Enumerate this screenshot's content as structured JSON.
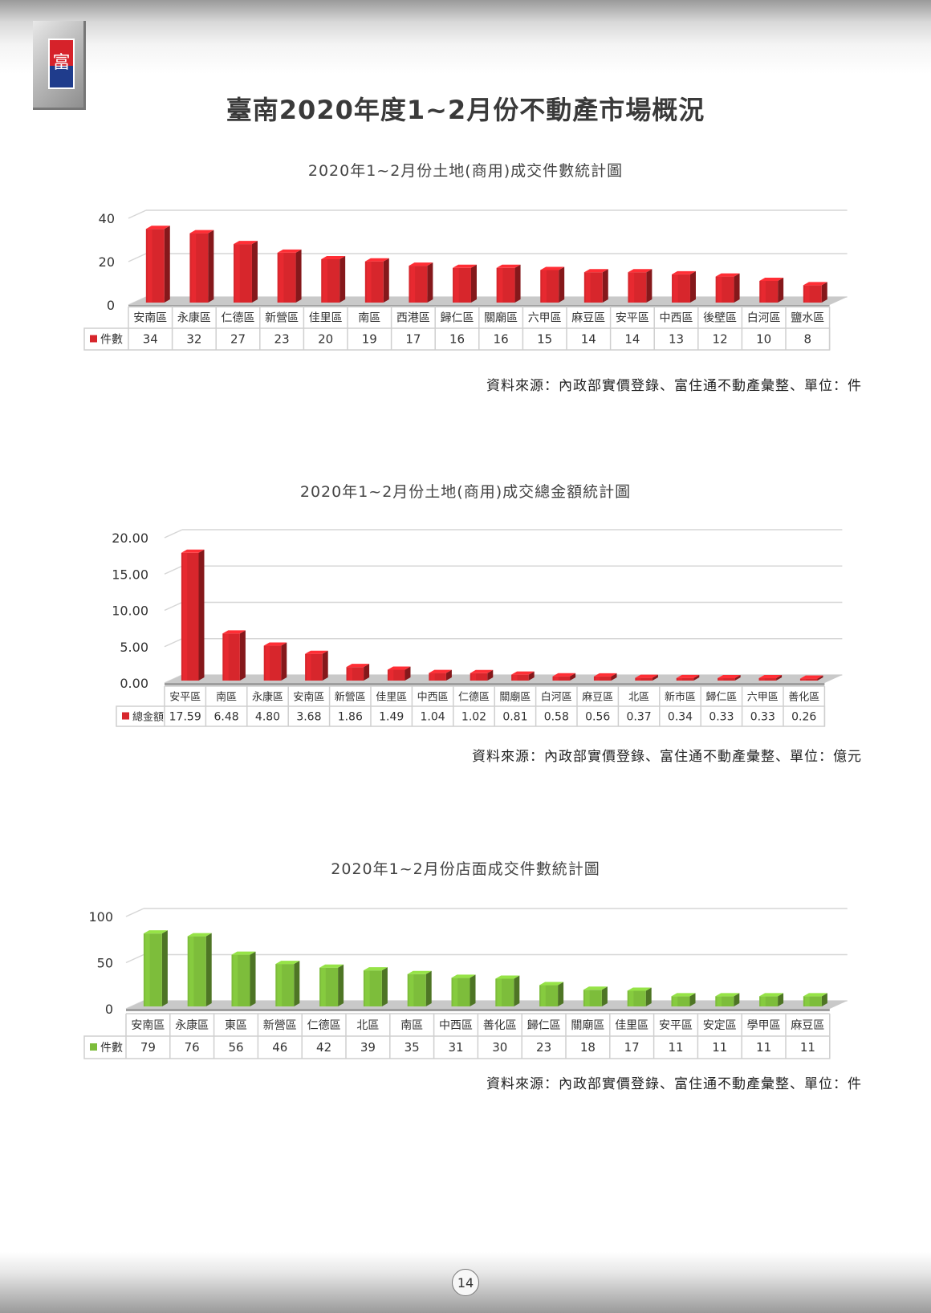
{
  "page": {
    "title": "臺南2020年度1~2月份不動產市場概況",
    "page_number": "14",
    "logo_glyph": "富"
  },
  "chart_data": [
    {
      "type": "bar",
      "title": "2020年1~2月份土地(商用)成交件數統計圖",
      "categories": [
        "安南區",
        "永康區",
        "仁德區",
        "新營區",
        "佳里區",
        "南區",
        "西港區",
        "歸仁區",
        "關廟區",
        "六甲區",
        "麻豆區",
        "安平區",
        "中西區",
        "後壁區",
        "白河區",
        "鹽水區"
      ],
      "series": [
        {
          "name": "件數",
          "values": [
            34,
            32,
            27,
            23,
            20,
            19,
            17,
            16,
            16,
            15,
            14,
            14,
            13,
            12,
            10,
            8
          ]
        }
      ],
      "value_labels": [
        "34",
        "32",
        "27",
        "23",
        "20",
        "19",
        "17",
        "16",
        "16",
        "15",
        "14",
        "14",
        "13",
        "12",
        "10",
        "8"
      ],
      "ylim": [
        0,
        40
      ],
      "yticks": [
        0,
        20,
        40
      ],
      "ytick_labels": [
        "0",
        "20",
        "40"
      ],
      "grid": true,
      "legend": "data-table",
      "color": "#d7262c",
      "source": "資料來源：內政部實價登錄、富住通不動產彙整、單位：件"
    },
    {
      "type": "bar",
      "title": "2020年1~2月份土地(商用)成交總金額統計圖",
      "categories": [
        "安平區",
        "南區",
        "永康區",
        "安南區",
        "新營區",
        "佳里區",
        "中西區",
        "仁德區",
        "關廟區",
        "白河區",
        "麻豆區",
        "北區",
        "新市區",
        "歸仁區",
        "六甲區",
        "善化區"
      ],
      "series": [
        {
          "name": "總金額",
          "values": [
            17.59,
            6.48,
            4.8,
            3.68,
            1.86,
            1.49,
            1.04,
            1.02,
            0.81,
            0.58,
            0.56,
            0.37,
            0.34,
            0.33,
            0.33,
            0.26
          ]
        }
      ],
      "value_labels": [
        "17.59",
        "6.48",
        "4.80",
        "3.68",
        "1.86",
        "1.49",
        "1.04",
        "1.02",
        "0.81",
        "0.58",
        "0.56",
        "0.37",
        "0.34",
        "0.33",
        "0.33",
        "0.26"
      ],
      "ylim": [
        0,
        20
      ],
      "yticks": [
        0,
        5,
        10,
        15,
        20
      ],
      "ytick_labels": [
        "0.00",
        "5.00",
        "10.00",
        "15.00",
        "20.00"
      ],
      "grid": true,
      "legend": "data-table",
      "color": "#d7262c",
      "source": "資料來源：內政部實價登錄、富住通不動產彙整、單位：億元"
    },
    {
      "type": "bar",
      "title": "2020年1~2月份店面成交件數統計圖",
      "categories": [
        "安南區",
        "永康區",
        "東區",
        "新營區",
        "仁德區",
        "北區",
        "南區",
        "中西區",
        "善化區",
        "歸仁區",
        "關廟區",
        "佳里區",
        "安平區",
        "安定區",
        "學甲區",
        "麻豆區"
      ],
      "series": [
        {
          "name": "件數",
          "values": [
            79,
            76,
            56,
            46,
            42,
            39,
            35,
            31,
            30,
            23,
            18,
            17,
            11,
            11,
            11,
            11
          ]
        }
      ],
      "value_labels": [
        "79",
        "76",
        "56",
        "46",
        "42",
        "39",
        "35",
        "31",
        "30",
        "23",
        "18",
        "17",
        "11",
        "11",
        "11",
        "11"
      ],
      "ylim": [
        0,
        100
      ],
      "yticks": [
        0,
        50,
        100
      ],
      "ytick_labels": [
        "0",
        "50",
        "100"
      ],
      "grid": true,
      "legend": "data-table",
      "color": "#7dbd3b",
      "source": "資料來源：內政部實價登錄、富住通不動產彙整、單位：件"
    }
  ]
}
